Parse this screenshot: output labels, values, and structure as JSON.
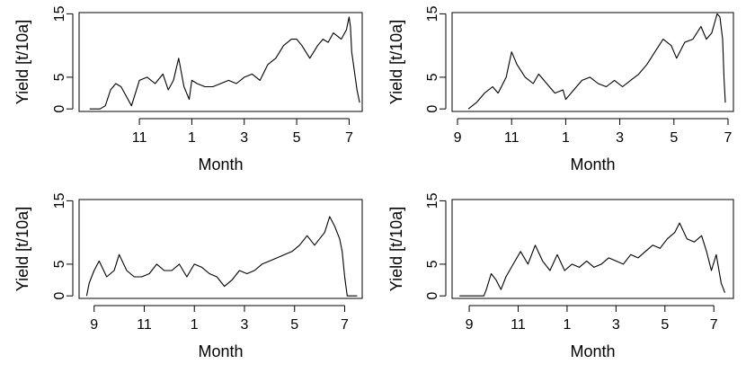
{
  "chart_data": [
    {
      "type": "line",
      "xlabel": "Month",
      "ylabel": "Yield [t/10a]",
      "xlim": [
        8.7,
        19.5
      ],
      "ylim": [
        -0.4,
        15.2
      ],
      "xticks": [
        {
          "value": 11,
          "label": "11"
        },
        {
          "value": 13,
          "label": "1"
        },
        {
          "value": 15,
          "label": "3"
        },
        {
          "value": 17,
          "label": "5"
        },
        {
          "value": 19,
          "label": "7"
        }
      ],
      "yticks": [
        {
          "value": 0,
          "label": "0"
        },
        {
          "value": 5,
          "label": "5"
        },
        {
          "value": 15,
          "label": "15"
        }
      ],
      "series": [
        {
          "x": [
            9.1,
            9.5,
            9.7,
            9.9,
            10.1,
            10.3,
            10.5,
            10.7,
            11.0,
            11.3,
            11.6,
            11.9,
            12.1,
            12.3,
            12.5,
            12.7,
            12.9,
            13.0,
            13.2,
            13.5,
            13.8,
            14.1,
            14.4,
            14.7,
            15.0,
            15.3,
            15.6,
            15.9,
            16.2,
            16.5,
            16.8,
            17.0,
            17.2,
            17.5,
            17.8,
            18.0,
            18.2,
            18.4,
            18.7,
            18.9,
            19.0,
            19.05,
            19.1,
            19.3,
            19.4
          ],
          "y": [
            0,
            0,
            0.5,
            3,
            4,
            3.5,
            2,
            0.5,
            4.5,
            5,
            4,
            5.5,
            3,
            4.5,
            8,
            3.5,
            1.5,
            4.5,
            4,
            3.5,
            3.5,
            4,
            4.5,
            4,
            5,
            5.5,
            4.5,
            7,
            8,
            10,
            11,
            11,
            10,
            8,
            10,
            11,
            10.5,
            12,
            11,
            12.5,
            14.5,
            13,
            9,
            3,
            1
          ]
        }
      ]
    },
    {
      "type": "line",
      "xlabel": "Month",
      "ylabel": "Yield [t/10a]",
      "xlim": [
        8.8,
        19.2
      ],
      "ylim": [
        -0.4,
        15.2
      ],
      "xticks": [
        {
          "value": 9,
          "label": "9"
        },
        {
          "value": 11,
          "label": "11"
        },
        {
          "value": 13,
          "label": "1"
        },
        {
          "value": 15,
          "label": "3"
        },
        {
          "value": 17,
          "label": "5"
        },
        {
          "value": 19,
          "label": "7"
        }
      ],
      "yticks": [
        {
          "value": 0,
          "label": "0"
        },
        {
          "value": 5,
          "label": "5"
        },
        {
          "value": 15,
          "label": "15"
        }
      ],
      "series": [
        {
          "x": [
            9.4,
            9.7,
            10.0,
            10.3,
            10.5,
            10.8,
            11.0,
            11.2,
            11.5,
            11.8,
            12.0,
            12.3,
            12.6,
            12.9,
            13.0,
            13.3,
            13.6,
            13.9,
            14.2,
            14.5,
            14.8,
            15.1,
            15.4,
            15.7,
            16.0,
            16.3,
            16.6,
            16.9,
            17.1,
            17.4,
            17.7,
            18.0,
            18.2,
            18.4,
            18.6,
            18.7,
            18.8,
            18.85,
            18.9
          ],
          "y": [
            0,
            1,
            2.5,
            3.5,
            2.5,
            5,
            9,
            7,
            5,
            4,
            5.5,
            4,
            2.5,
            3,
            1.5,
            3,
            4.5,
            5,
            4,
            3.5,
            4.5,
            3.5,
            4.5,
            5.5,
            7,
            9,
            11,
            10,
            8,
            10.5,
            11,
            13,
            11,
            12,
            15,
            14.5,
            11,
            5,
            1
          ]
        }
      ]
    },
    {
      "type": "line",
      "xlabel": "Month",
      "ylabel": "Yield [t/10a]",
      "xlim": [
        8.4,
        19.7
      ],
      "ylim": [
        -0.4,
        15.2
      ],
      "xticks": [
        {
          "value": 9,
          "label": "9"
        },
        {
          "value": 11,
          "label": "11"
        },
        {
          "value": 13,
          "label": "1"
        },
        {
          "value": 15,
          "label": "3"
        },
        {
          "value": 17,
          "label": "5"
        },
        {
          "value": 19,
          "label": "7"
        }
      ],
      "yticks": [
        {
          "value": 0,
          "label": "0"
        },
        {
          "value": 5,
          "label": "5"
        },
        {
          "value": 15,
          "label": "15"
        }
      ],
      "series": [
        {
          "x": [
            8.7,
            8.8,
            9.0,
            9.2,
            9.5,
            9.8,
            10.0,
            10.3,
            10.6,
            10.9,
            11.2,
            11.5,
            11.8,
            12.1,
            12.4,
            12.7,
            13.0,
            13.3,
            13.6,
            13.9,
            14.2,
            14.5,
            14.8,
            15.1,
            15.4,
            15.7,
            16.0,
            16.3,
            16.6,
            16.9,
            17.2,
            17.5,
            17.8,
            18.0,
            18.2,
            18.4,
            18.6,
            18.8,
            18.9,
            19.0,
            19.1,
            19.3,
            19.5
          ],
          "y": [
            0,
            2,
            4,
            5.5,
            3,
            4,
            6.5,
            4,
            3,
            3,
            3.5,
            5,
            4,
            4,
            5,
            3,
            5,
            4.5,
            3.5,
            3,
            1.5,
            2.5,
            4,
            3.5,
            4,
            5,
            5.5,
            6,
            6.5,
            7,
            8,
            9.5,
            8,
            9,
            10,
            12.5,
            11,
            9,
            7,
            3,
            0,
            0,
            0
          ]
        }
      ]
    },
    {
      "type": "line",
      "xlabel": "Month",
      "ylabel": "Yield [t/10a]",
      "xlim": [
        8.3,
        19.8
      ],
      "ylim": [
        -0.4,
        15.2
      ],
      "xticks": [
        {
          "value": 9,
          "label": "9"
        },
        {
          "value": 11,
          "label": "11"
        },
        {
          "value": 13,
          "label": "1"
        },
        {
          "value": 15,
          "label": "3"
        },
        {
          "value": 17,
          "label": "5"
        },
        {
          "value": 19,
          "label": "7"
        }
      ],
      "yticks": [
        {
          "value": 0,
          "label": "0"
        },
        {
          "value": 5,
          "label": "5"
        },
        {
          "value": 15,
          "label": "15"
        }
      ],
      "series": [
        {
          "x": [
            8.6,
            9.2,
            9.6,
            9.7,
            9.9,
            10.1,
            10.3,
            10.5,
            10.8,
            11.1,
            11.4,
            11.7,
            12.0,
            12.3,
            12.6,
            12.9,
            13.2,
            13.5,
            13.8,
            14.1,
            14.4,
            14.7,
            15.0,
            15.3,
            15.6,
            15.9,
            16.2,
            16.5,
            16.8,
            17.1,
            17.4,
            17.6,
            17.9,
            18.2,
            18.5,
            18.7,
            18.9,
            19.1,
            19.3,
            19.45
          ],
          "y": [
            0,
            0,
            0,
            1,
            3.5,
            2.5,
            1,
            3,
            5,
            7,
            5,
            8,
            5.5,
            4,
            6.5,
            4,
            5,
            4.5,
            5.5,
            4.5,
            5,
            6,
            5.5,
            5,
            6.5,
            6,
            7,
            8,
            7.5,
            9,
            10,
            11.5,
            9,
            8.5,
            9.5,
            7,
            4,
            6.5,
            2,
            0.5
          ]
        }
      ]
    }
  ]
}
